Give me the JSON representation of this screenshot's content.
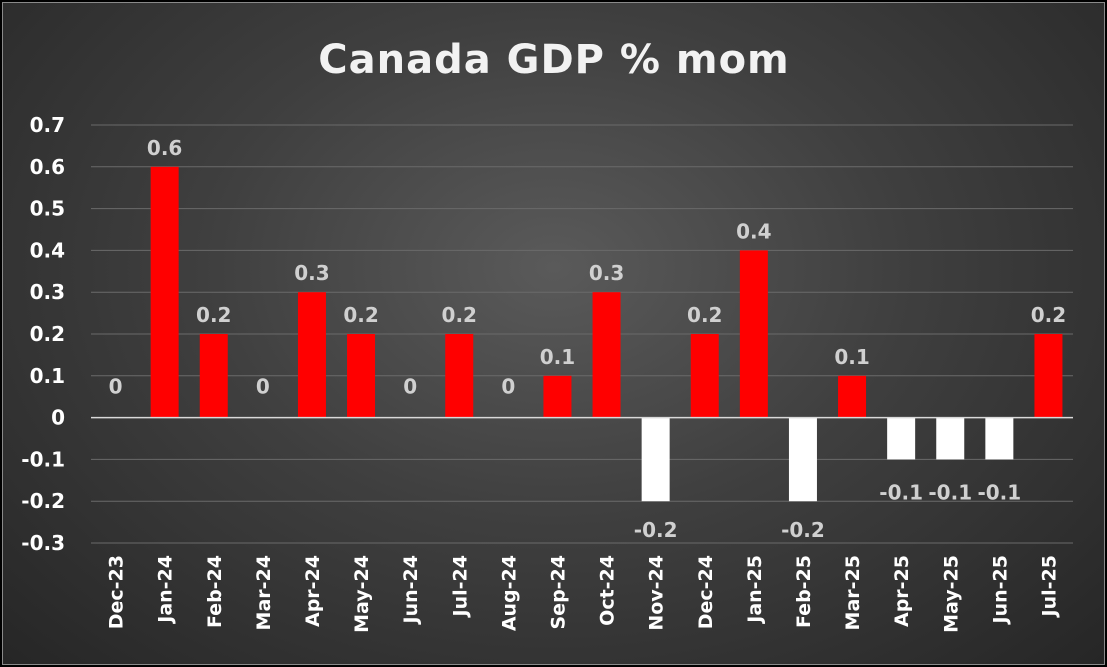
{
  "chart_data": {
    "type": "bar",
    "title": "Canada GDP % mom",
    "categories": [
      "Dec-23",
      "Jan-24",
      "Feb-24",
      "Mar-24",
      "Apr-24",
      "May-24",
      "Jun-24",
      "Jul-24",
      "Aug-24",
      "Sep-24",
      "Oct-24",
      "Nov-24",
      "Dec-24",
      "Jan-25",
      "Feb-25",
      "Mar-25",
      "Apr-25",
      "May-25",
      "Jun-25",
      "Jul-25"
    ],
    "values": [
      0,
      0.6,
      0.2,
      0,
      0.3,
      0.2,
      0,
      0.2,
      0,
      0.1,
      0.3,
      -0.2,
      0.2,
      0.4,
      -0.2,
      0.1,
      -0.1,
      -0.1,
      -0.1,
      0.2
    ],
    "data_labels": [
      "0",
      "0.6",
      "0.2",
      "0",
      "0.3",
      "0.2",
      "0",
      "0.2",
      "0",
      "0.1",
      "0.3",
      "-0.2",
      "0.2",
      "0.4",
      "-0.2",
      "0.1",
      "-0.1",
      "-0.1",
      "-0.1",
      "0.2"
    ],
    "y_ticks": [
      "0.7",
      "0.6",
      "0.5",
      "0.4",
      "0.3",
      "0.2",
      "0.1",
      "0",
      "-0.1",
      "-0.2",
      "-0.3"
    ],
    "ylim": [
      -0.3,
      0.7
    ],
    "xlabel": "",
    "ylabel": "",
    "grid": true,
    "colors": {
      "positive": "#ff0000",
      "negative": "#ffffff"
    }
  }
}
